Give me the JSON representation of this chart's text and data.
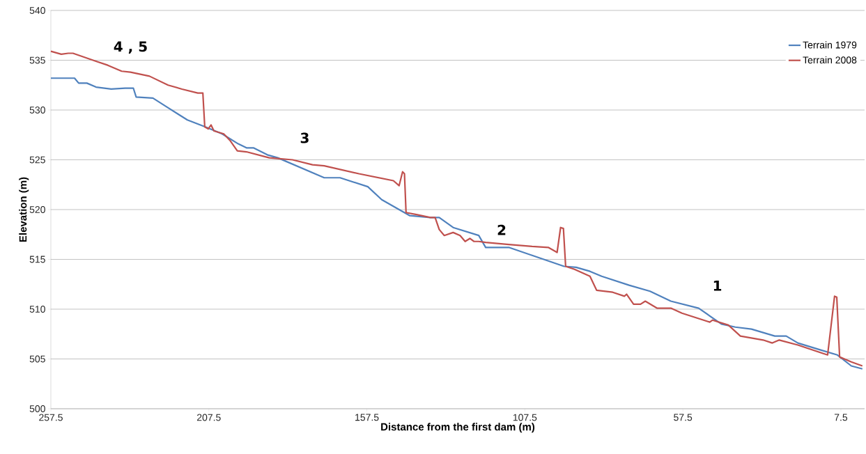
{
  "chart_data": {
    "type": "line",
    "xlabel": "Distance from the first dam (m)",
    "ylabel": "Elevation (m)",
    "xlim": [
      257.5,
      0
    ],
    "xticks": [
      257.5,
      207.5,
      157.5,
      107.5,
      57.5,
      7.5
    ],
    "ylim": [
      500,
      540
    ],
    "yticks": [
      500,
      505,
      510,
      515,
      520,
      525,
      530,
      535,
      540
    ],
    "grid": "y",
    "legend": "top right",
    "marker": "none",
    "line_style": "solid",
    "annotations": [
      "4 , 5",
      "3",
      "2",
      "1"
    ],
    "series": [
      {
        "name": "Terrain 1979",
        "color": "#4f81bd",
        "x": [
          257.5,
          250.0,
          248.7,
          246.1,
          243.2,
          238.4,
          234.0,
          231.4,
          230.5,
          225.2,
          220.8,
          214.3,
          208.6,
          203.3,
          198.2,
          195.6,
          193.4,
          189.0,
          185.7,
          171.0,
          166.0,
          157.2,
          152.8,
          144.0,
          137.4,
          134.6,
          130.2,
          122.1,
          119.9,
          112.6,
          108.9,
          105.2,
          95.1,
          91.3,
          86.9,
          83.2,
          74.5,
          67.9,
          61.3,
          52.5,
          45.3,
          40.9,
          35.8,
          28.4,
          24.8,
          21.1,
          13.9,
          8.6,
          4.2,
          0.7
        ],
        "values": [
          533.2,
          533.2,
          532.7,
          532.7,
          532.3,
          532.1,
          532.2,
          532.2,
          531.3,
          531.2,
          530.3,
          529.0,
          528.3,
          527.6,
          526.6,
          526.2,
          526.2,
          525.5,
          525.2,
          523.2,
          523.2,
          522.3,
          521.0,
          519.4,
          519.2,
          519.2,
          518.2,
          517.4,
          516.2,
          516.2,
          515.8,
          515.4,
          514.3,
          514.2,
          513.8,
          513.3,
          512.4,
          511.8,
          510.8,
          510.1,
          508.5,
          508.2,
          508.0,
          507.3,
          507.3,
          506.6,
          505.9,
          505.4,
          504.3,
          504.0
        ]
      },
      {
        "name": "Terrain 2008",
        "color": "#c0504d",
        "x": [
          257.5,
          254.2,
          252.0,
          250.5,
          243.2,
          239.5,
          235.1,
          232.3,
          226.3,
          220.4,
          216.0,
          211.0,
          209.4,
          208.8,
          207.7,
          206.8,
          205.9,
          202.8,
          200.7,
          198.5,
          195.6,
          188.4,
          181.0,
          174.7,
          171.0,
          160.0,
          149.1,
          147.3,
          146.2,
          145.6,
          145.1,
          141.8,
          137.4,
          135.9,
          134.6,
          133.0,
          130.2,
          128.0,
          126.4,
          124.9,
          123.6,
          122.1,
          119.9,
          112.6,
          105.2,
          100.1,
          97.3,
          96.2,
          95.3,
          94.6,
          91.8,
          86.9,
          84.8,
          79.7,
          76.0,
          75.3,
          73.1,
          70.9,
          69.4,
          65.7,
          61.3,
          57.8,
          49.0,
          48.1,
          43.1,
          39.3,
          32.1,
          29.2,
          27.0,
          21.1,
          11.7,
          9.5,
          8.8,
          7.9,
          4.2,
          0.7
        ],
        "values": [
          535.9,
          535.6,
          535.7,
          535.7,
          534.9,
          534.5,
          533.9,
          533.8,
          533.4,
          532.5,
          532.1,
          531.7,
          531.7,
          528.3,
          528.1,
          528.5,
          527.9,
          527.6,
          526.9,
          525.9,
          525.8,
          525.2,
          525.0,
          524.5,
          524.4,
          523.6,
          522.9,
          522.4,
          523.8,
          523.6,
          519.7,
          519.5,
          519.2,
          519.2,
          518.0,
          517.4,
          517.7,
          517.4,
          516.8,
          517.1,
          516.8,
          516.8,
          516.7,
          516.5,
          516.3,
          516.2,
          515.7,
          518.2,
          518.1,
          514.3,
          514.0,
          513.3,
          511.9,
          511.7,
          511.3,
          511.5,
          510.5,
          510.5,
          510.8,
          510.1,
          510.1,
          509.6,
          508.7,
          508.9,
          508.4,
          507.3,
          506.9,
          506.6,
          506.9,
          506.4,
          505.4,
          511.3,
          511.2,
          505.2,
          504.7,
          504.3
        ]
      }
    ]
  }
}
